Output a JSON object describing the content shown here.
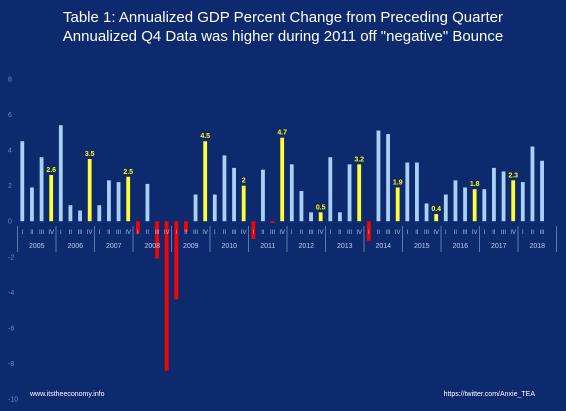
{
  "chart_data": {
    "type": "bar",
    "title": "Table 1: Annualized GDP Percent Change from Preceding Quarter",
    "subtitle": "Annualized Q4 Data was higher during 2011 off \"negative\" Bounce",
    "ylim": [
      -10,
      8
    ],
    "y_ticks": [
      "8",
      "6",
      "4",
      "2",
      "0",
      "-2",
      "-4",
      "-6",
      "-8",
      "-10"
    ],
    "quarter_labels": [
      "I",
      "II",
      "III",
      "IV"
    ],
    "years": [
      "2005",
      "2006",
      "2007",
      "2008",
      "2009",
      "2010",
      "2011",
      "2012",
      "2013",
      "2014",
      "2015",
      "2016",
      "2017",
      "2018"
    ],
    "values": [
      4.5,
      1.9,
      3.6,
      2.6,
      5.4,
      0.9,
      0.6,
      3.5,
      0.9,
      2.3,
      2.2,
      2.5,
      -0.7,
      2.1,
      -2.1,
      -8.4,
      -4.4,
      -0.6,
      1.5,
      4.5,
      1.5,
      3.7,
      3.0,
      2.0,
      -1.0,
      2.9,
      -0.1,
      4.7,
      3.2,
      1.7,
      0.5,
      0.5,
      3.6,
      0.5,
      3.2,
      3.2,
      -1.1,
      5.1,
      4.9,
      1.9,
      3.3,
      3.3,
      1.0,
      0.4,
      1.5,
      2.3,
      1.9,
      1.8,
      1.8,
      3.0,
      2.8,
      2.3,
      2.2,
      4.2,
      3.4
    ],
    "data_labels": [
      {
        "index": 3,
        "text": "2.6"
      },
      {
        "index": 7,
        "text": "3.5"
      },
      {
        "index": 11,
        "text": "2.5"
      },
      {
        "index": 19,
        "text": "4.5"
      },
      {
        "index": 23,
        "text": "2"
      },
      {
        "index": 27,
        "text": "4.7"
      },
      {
        "index": 31,
        "text": "0.5"
      },
      {
        "index": 35,
        "text": "3.2"
      },
      {
        "index": 39,
        "text": "1.9"
      },
      {
        "index": 43,
        "text": "0.4"
      },
      {
        "index": 47,
        "text": "1.8"
      },
      {
        "index": 51,
        "text": "2.3"
      }
    ],
    "colors": {
      "background": "#0e2a6e",
      "quarter_bar": "#a9d0f5",
      "q4_bar": "#ffff33",
      "negative_bar": "#ff0000",
      "data_label": "#ffff00",
      "axis_text": "#5b8fd0",
      "separator": "#6f8fc0"
    },
    "grid": false,
    "legend": "none"
  },
  "footer": {
    "left": "www.itstheeconomy.info",
    "right": "https://twitter.com/Anxie_TEA"
  }
}
